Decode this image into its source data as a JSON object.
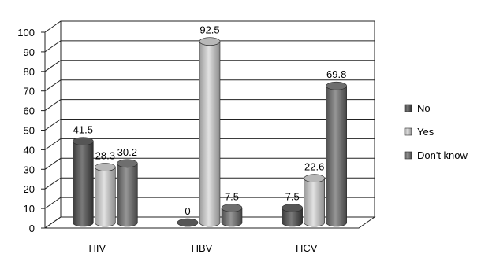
{
  "chart_data": {
    "type": "bar",
    "title": "",
    "xlabel": "",
    "ylabel": "",
    "categories": [
      "HIV",
      "HBV",
      "HCV"
    ],
    "series": [
      {
        "name": "No",
        "values": [
          41.5,
          0,
          7.5
        ],
        "color": "#555555"
      },
      {
        "name": "Yes",
        "values": [
          28.3,
          92.5,
          22.6
        ],
        "color": "#b8b8b8"
      },
      {
        "name": "Don't know",
        "values": [
          30.2,
          7.5,
          69.8
        ],
        "color": "#6e6e6e"
      }
    ],
    "data_labels": [
      [
        "41.5",
        "0",
        "7.5"
      ],
      [
        "28.3",
        "92.5",
        "22.6"
      ],
      [
        "30.2",
        "7.5",
        "69.8"
      ]
    ],
    "yticks": [
      "0",
      "10",
      "20",
      "30",
      "40",
      "50",
      "60",
      "70",
      "80",
      "90",
      "100"
    ],
    "ylim": [
      0,
      100
    ],
    "grid": true,
    "style": "3d-cylinder",
    "legend_position": "right"
  }
}
